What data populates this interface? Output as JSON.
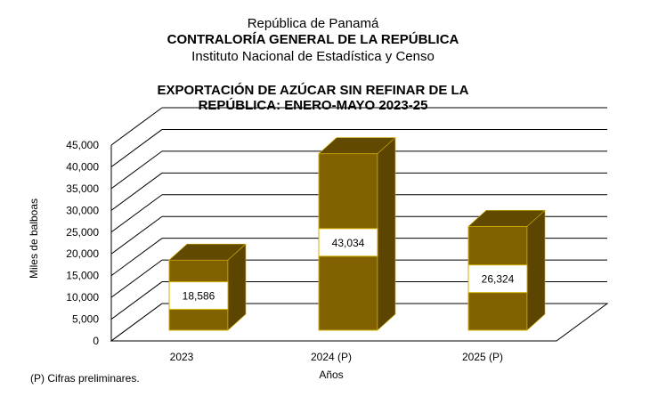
{
  "header": {
    "line1": "República de Panamá",
    "line2": "CONTRALORÍA GENERAL DE LA REPÚBLICA",
    "line3": "Instituto  Nacional de Estadística y Censo"
  },
  "footnote": "(P) Cifras  preliminares.",
  "colors": {
    "bar_front": "#806000",
    "bar_top": "#614a00",
    "bar_side": "#5b4500",
    "bar_outline": "#d4b000",
    "label_box_fill": "#ffffff",
    "gridline": "#000000"
  },
  "chart_data": {
    "type": "bar",
    "title_lines": [
      "EXPORTACIÓN DE AZÚCAR SIN REFINAR DE LA",
      "REPÚBLICA: ENERO-MAYO 2023-25"
    ],
    "categories": [
      "2023",
      "2024 (P)",
      "2025 (P)"
    ],
    "values": [
      18586,
      43034,
      26324
    ],
    "value_labels": [
      "18,586",
      "43,034",
      "26,324"
    ],
    "xlabel": "Años",
    "ylabel": "Miles de balboas",
    "ylim": [
      0,
      45000
    ],
    "yticks": [
      0,
      5000,
      10000,
      15000,
      20000,
      25000,
      30000,
      35000,
      40000,
      45000
    ],
    "ytick_labels": [
      "0",
      "5,000",
      "10,000",
      "15,000",
      "20,000",
      "25,000",
      "30,000",
      "35,000",
      "40,000",
      "45,000"
    ],
    "grid": true,
    "legend": "none",
    "style": "3d"
  }
}
